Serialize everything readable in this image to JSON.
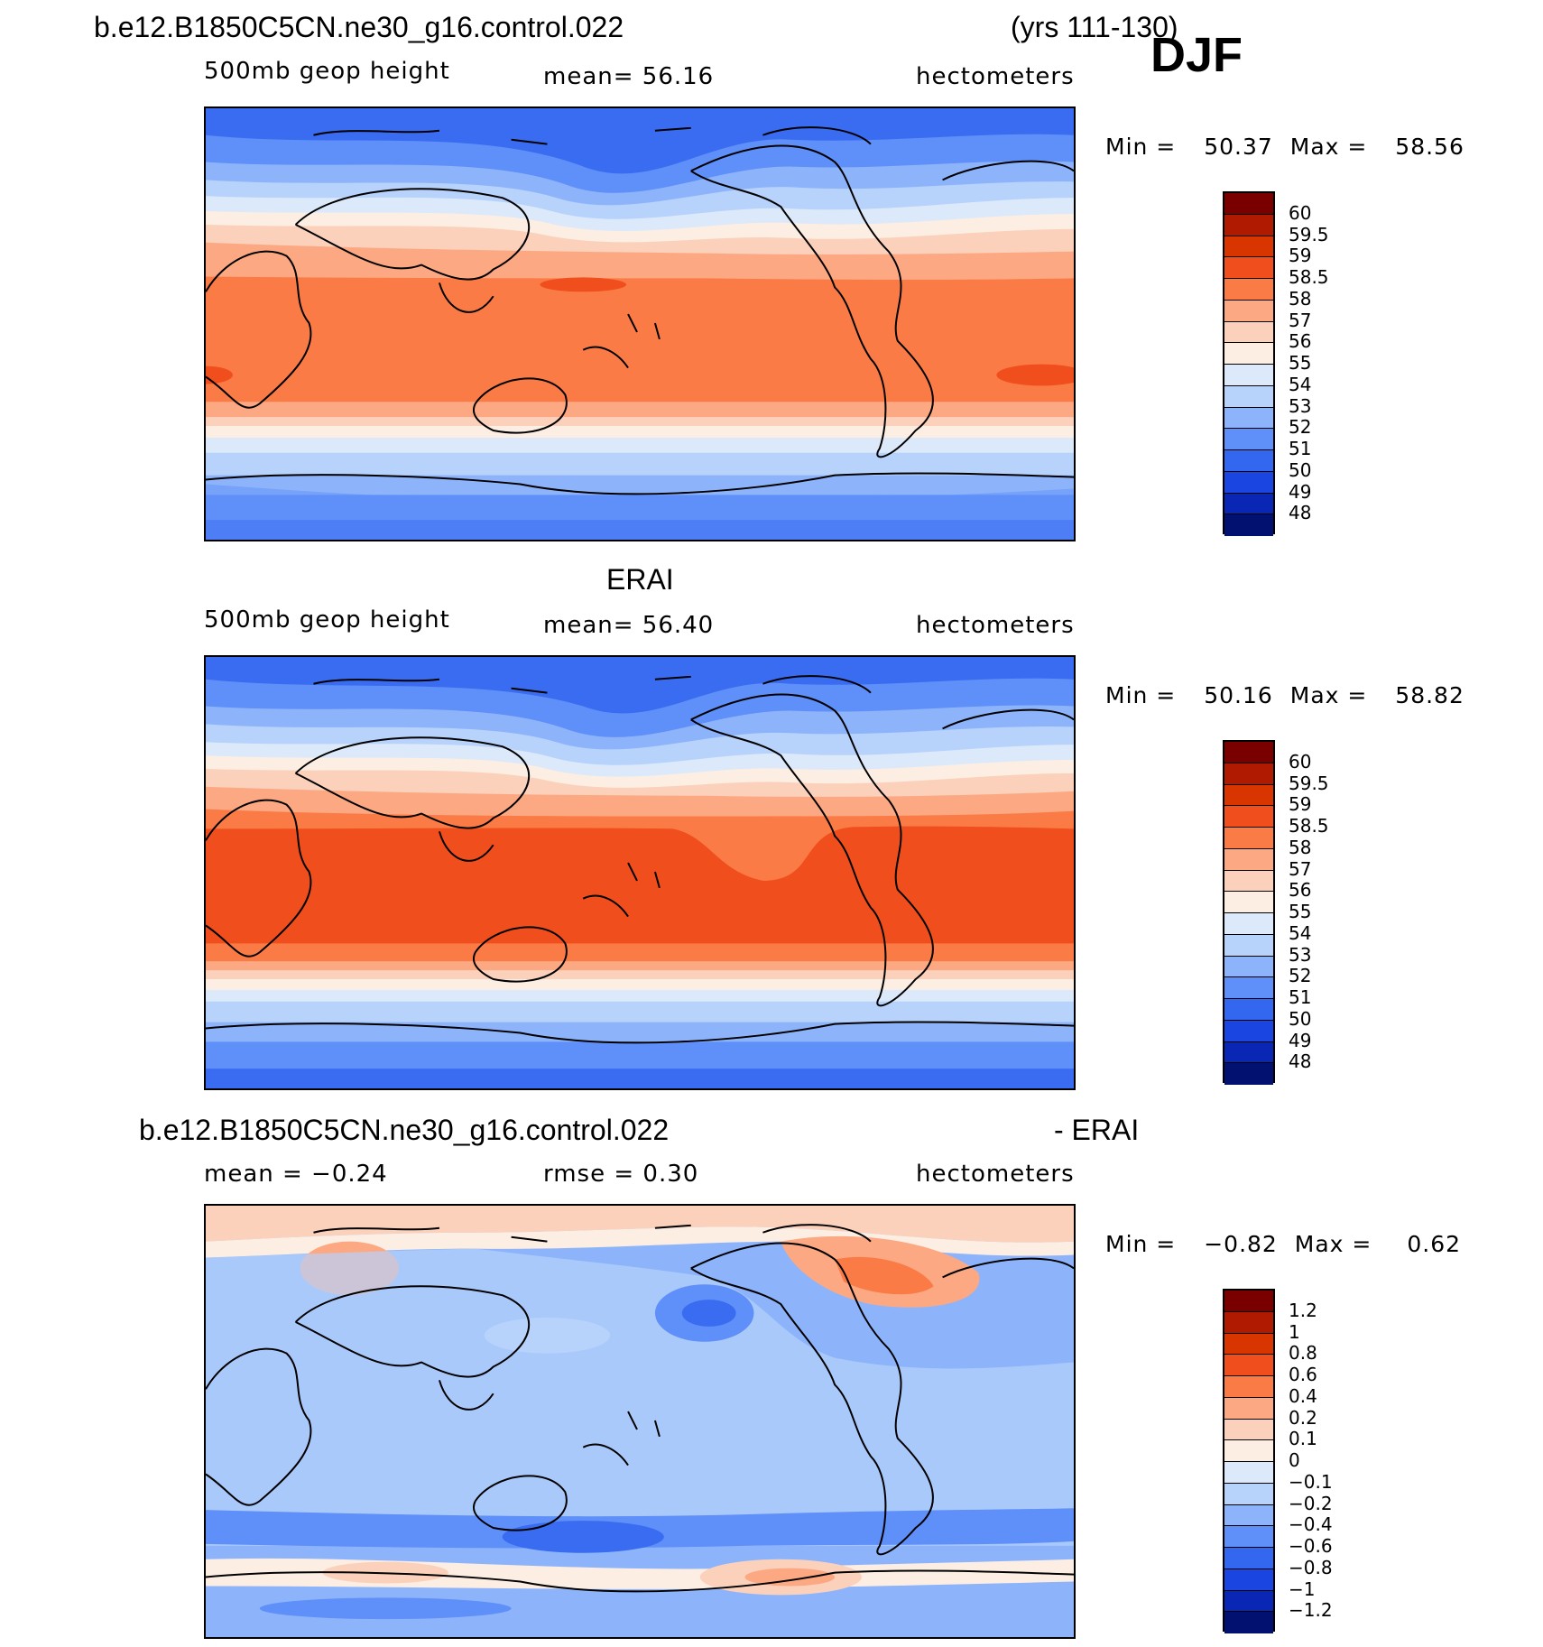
{
  "header": {
    "case_name": "b.e12.B1850C5CN.ne30_g16.control.022",
    "years": "(yrs 111-130)",
    "season": "DJF"
  },
  "panels": [
    {
      "id": "model",
      "title": "",
      "left_label": "500mb geop height",
      "center_label": "mean=   56.16",
      "right_label": "hectometers",
      "min_label": "Min =",
      "min_value": "50.37",
      "max_label": "Max =",
      "max_value": "58.56"
    },
    {
      "id": "obs",
      "title": "ERAI",
      "left_label": "500mb geop height",
      "center_label": "mean=   56.40",
      "right_label": "hectometers",
      "min_label": "Min =",
      "min_value": "50.16",
      "max_label": "Max =",
      "max_value": "58.82"
    },
    {
      "id": "diff",
      "title_left": "b.e12.B1850C5CN.ne30_g16.control.022",
      "title_right": "- ERAI",
      "left_label": "mean =   −0.24",
      "center_label": "rmse =    0.30",
      "right_label": "hectometers",
      "min_label": "Min =",
      "min_value": "−0.82",
      "max_label": "Max =",
      "max_value": "0.62"
    }
  ],
  "colorbar_abs": {
    "labels": [
      "60",
      "59.5",
      "59",
      "58.5",
      "58",
      "57",
      "56",
      "55",
      "54",
      "53",
      "52",
      "51",
      "50",
      "49",
      "48"
    ],
    "colors": [
      "#7a0000",
      "#b01a00",
      "#d83500",
      "#f04e1c",
      "#fb7b47",
      "#fca983",
      "#fcd1bb",
      "#fdeee3",
      "#dce9fa",
      "#b7d2fb",
      "#8db4fb",
      "#5f8ff8",
      "#3367ef",
      "#1a45e0",
      "#0a26b5",
      "#021070"
    ]
  },
  "colorbar_diff": {
    "labels": [
      "1.2",
      "1",
      "0.8",
      "0.6",
      "0.4",
      "0.2",
      "0.1",
      "0",
      "−0.1",
      "−0.2",
      "−0.4",
      "−0.6",
      "−0.8",
      "−1",
      "−1.2"
    ],
    "colors": [
      "#7a0000",
      "#b01a00",
      "#d83500",
      "#f04e1c",
      "#fb7b47",
      "#fca983",
      "#fcd1bb",
      "#fdeee3",
      "#dce9fa",
      "#b7d2fb",
      "#8db4fb",
      "#5f8ff8",
      "#3367ef",
      "#1a45e0",
      "#0a26b5",
      "#021070"
    ]
  },
  "map_colors": {
    "deep_blue": "#3a6cf2",
    "blue": "#5f8ff8",
    "mid_blue": "#8db4fb",
    "light_blue": "#b7d2fb",
    "pale_blue": "#dce9fa",
    "cream": "#fdeee3",
    "peach": "#fcd1bb",
    "salmon": "#fca983",
    "orange": "#fb7b47",
    "red_orange": "#f04e1c",
    "coast": "#000000"
  }
}
